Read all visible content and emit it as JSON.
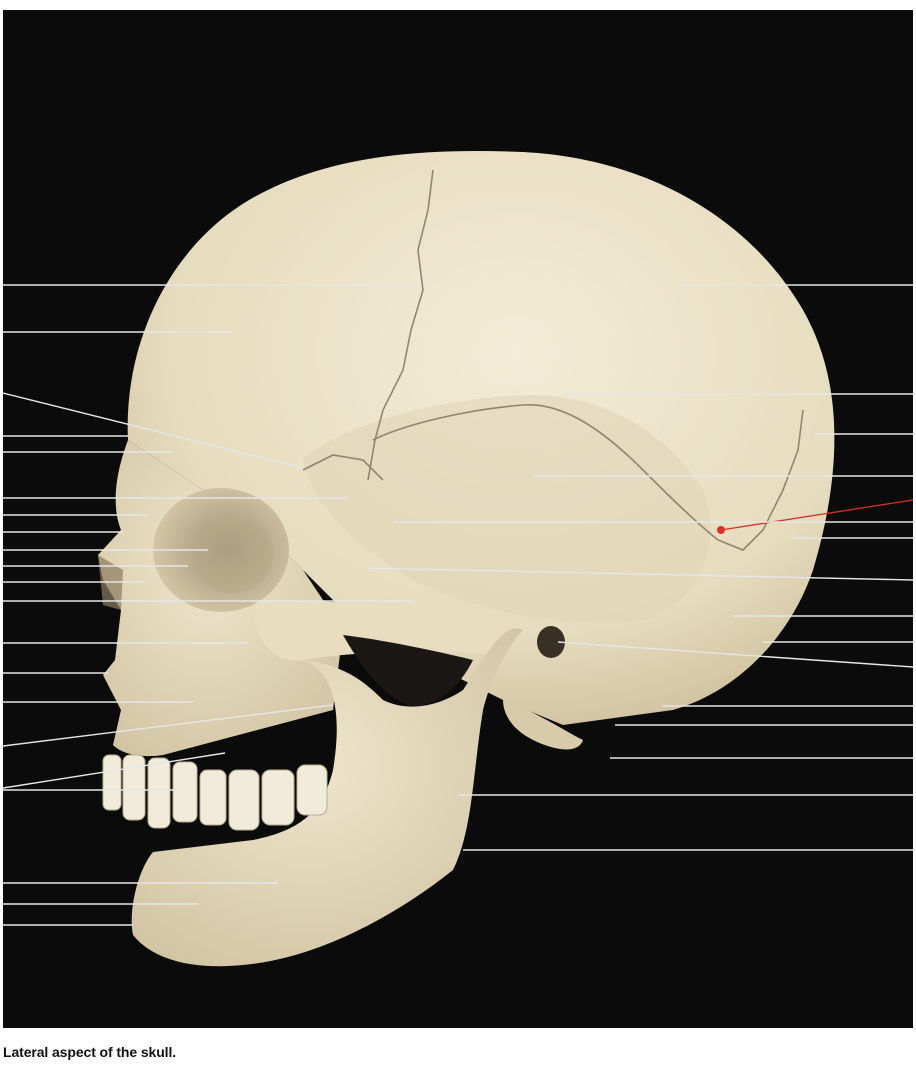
{
  "figure": {
    "caption": "Lateral aspect of the skull."
  },
  "colors": {
    "background": "#0b0b0b",
    "bone": "#e9dfc3",
    "bone_shadow": "#c9b998",
    "leader_line": "#e6e6e6",
    "marker": "#d8312b"
  },
  "labels": {
    "left_count": 26,
    "right_count": 17,
    "text_shown": false
  }
}
